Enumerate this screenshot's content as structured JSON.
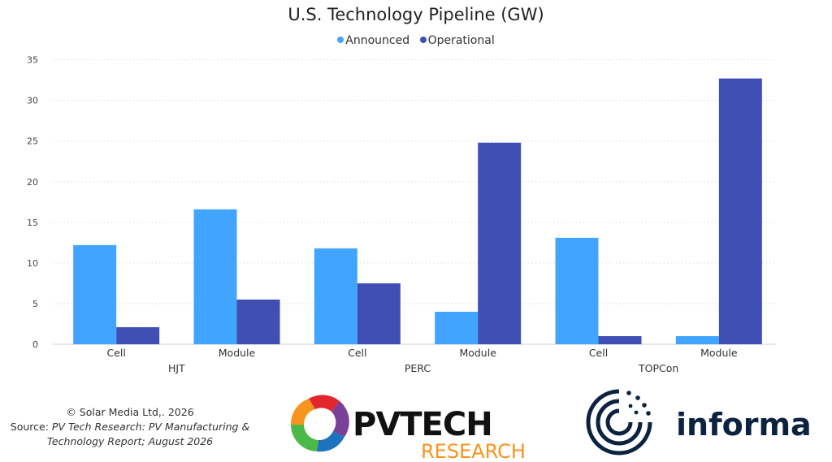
{
  "colors": {
    "announced": "#41a5ff",
    "operational": "#3f4fb3",
    "grid": "#d9d9d9",
    "pvtech_orange": "#f7941d",
    "informa_navy": "#0c2340"
  },
  "chart_data": {
    "type": "bar",
    "title": "U.S. Technology Pipeline (GW)",
    "xlabel": "",
    "ylabel": "",
    "ylim": [
      0,
      35
    ],
    "yticks": [
      0,
      5,
      10,
      15,
      20,
      25,
      30,
      35
    ],
    "grid": true,
    "legend_position": "top-center",
    "groups": [
      "HJT",
      "PERC",
      "TOPCon"
    ],
    "categories": [
      "Cell",
      "Module",
      "Cell",
      "Module",
      "Cell",
      "Module"
    ],
    "category_groups": [
      "HJT",
      "HJT",
      "PERC",
      "PERC",
      "TOPCon",
      "TOPCon"
    ],
    "series": [
      {
        "name": "Announced",
        "values": [
          12.2,
          16.6,
          11.8,
          4.0,
          13.1,
          1.0
        ]
      },
      {
        "name": "Operational",
        "values": [
          2.1,
          5.5,
          7.5,
          24.8,
          1.0,
          32.7
        ]
      }
    ]
  },
  "footer": {
    "copyright": "© Solar Media Ltd,. 2026",
    "source_prefix": "Source: ",
    "source_italic_1": "PV Tech Research: PV Manufacturing &",
    "source_italic_2": "Technology Report; August 2026"
  },
  "logos": {
    "pvtech": {
      "word": "PVTECH",
      "sub": "RESEARCH"
    },
    "informa": {
      "word": "informa"
    }
  }
}
